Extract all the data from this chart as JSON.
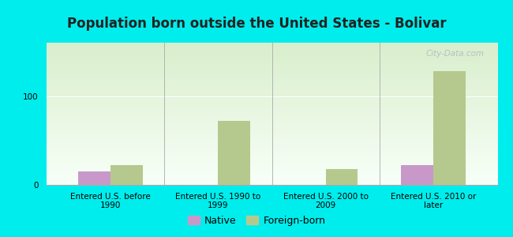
{
  "title": "Population born outside the United States - Bolivar",
  "categories": [
    "Entered U.S. before\n1990",
    "Entered U.S. 1990 to\n1999",
    "Entered U.S. 2000 to\n2009",
    "Entered U.S. 2010 or\nlater"
  ],
  "native_values": [
    15,
    0,
    0,
    22
  ],
  "foreign_values": [
    22,
    72,
    18,
    128
  ],
  "native_color": "#c899c8",
  "foreign_color": "#b5c98e",
  "background_outer": "#00eded",
  "background_inner_top": "#d8eecc",
  "background_inner_bottom": "#f8fff8",
  "ylim": [
    0,
    160
  ],
  "yticks": [
    0,
    100
  ],
  "bar_width": 0.3,
  "title_fontsize": 12,
  "tick_fontsize": 7.5,
  "legend_fontsize": 9,
  "watermark": "City-Data.com"
}
